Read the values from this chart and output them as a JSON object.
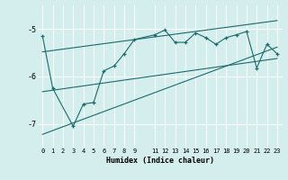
{
  "xlabel": "Humidex (Indice chaleur)",
  "bg_color": "#d4eeee",
  "line_color": "#1a6b6b",
  "grid_color": "#b8dede",
  "xlim": [
    -0.5,
    23.5
  ],
  "ylim": [
    -7.5,
    -4.5
  ],
  "yticks": [
    -7,
    -6,
    -5
  ],
  "xticks": [
    0,
    1,
    2,
    3,
    4,
    5,
    6,
    7,
    8,
    9,
    11,
    12,
    13,
    14,
    15,
    16,
    17,
    18,
    19,
    20,
    21,
    22,
    23
  ],
  "curve_x": [
    0,
    1,
    3,
    4,
    5,
    6,
    7,
    8,
    9,
    11,
    12,
    13,
    14,
    15,
    16,
    17,
    18,
    19,
    20,
    21,
    22,
    23
  ],
  "curve_y": [
    -5.15,
    -6.25,
    -7.05,
    -6.58,
    -6.55,
    -5.88,
    -5.78,
    -5.52,
    -5.22,
    -5.12,
    -5.02,
    -5.28,
    -5.28,
    -5.08,
    -5.18,
    -5.32,
    -5.18,
    -5.12,
    -5.05,
    -5.82,
    -5.32,
    -5.52
  ],
  "line1_x": [
    0,
    23
  ],
  "line1_y": [
    -5.48,
    -4.82
  ],
  "line2_x": [
    0,
    23
  ],
  "line2_y": [
    -6.32,
    -5.62
  ],
  "line3_x": [
    0,
    23
  ],
  "line3_y": [
    -7.22,
    -5.38
  ]
}
